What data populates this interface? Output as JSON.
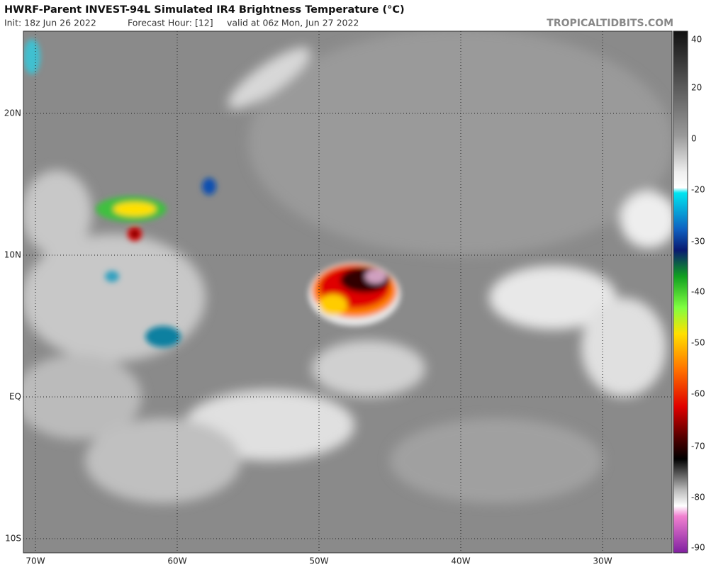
{
  "header": {
    "title": "HWRF-Parent INVEST-94L Simulated IR4 Brightness Temperature (°C)",
    "init": "Init: 18z Jun 26 2022",
    "forecast_hour": "Forecast Hour: [12]",
    "valid": "valid at 06z Mon, Jun 27 2022",
    "source": "TROPICALTIDBITS.COM"
  },
  "map": {
    "lat_labels": [
      "20N",
      "10N",
      "EQ",
      "10S"
    ],
    "lon_labels": [
      "70W",
      "60W",
      "50W",
      "40W",
      "30W"
    ]
  },
  "colorbar": {
    "labels": [
      "40",
      "20",
      "0",
      "-20",
      "-30",
      "-40",
      "-50",
      "-60",
      "-70",
      "-80",
      "-90"
    ]
  }
}
